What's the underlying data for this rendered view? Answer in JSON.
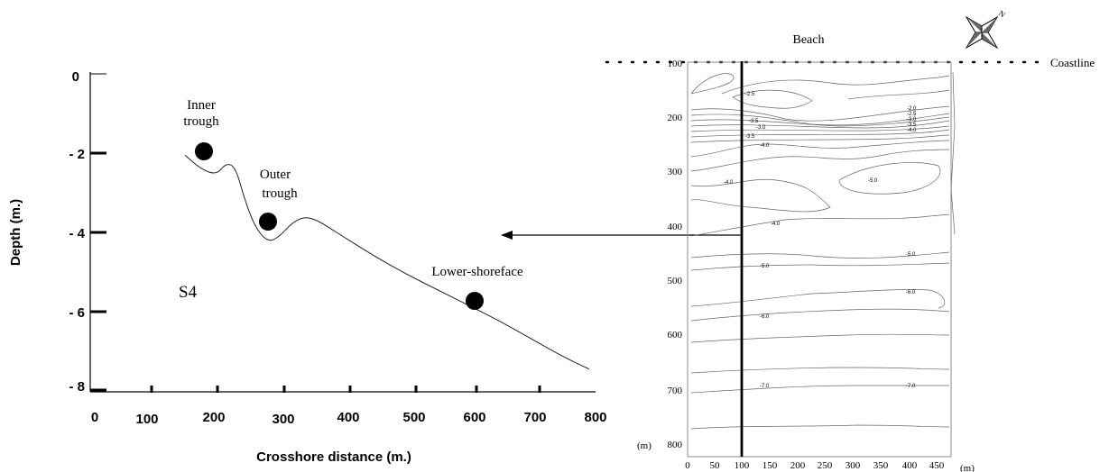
{
  "profile": {
    "y_axis_title": "Depth (m.)",
    "x_axis_title": "Crosshore distance (m.)",
    "y_ticks": [
      "0",
      "- 2",
      "- 4",
      "- 6",
      "- 8"
    ],
    "x_ticks": [
      "0",
      "100",
      "200",
      "300",
      "400",
      "500",
      "600",
      "700",
      "800"
    ],
    "station_label": "S4",
    "samples": [
      {
        "label_lines": [
          "Inner",
          "trough"
        ],
        "distance_m": 180,
        "depth_m": -2.0
      },
      {
        "label_lines": [
          "Outer",
          "trough"
        ],
        "distance_m": 270,
        "depth_m": -3.75
      },
      {
        "label_lines": [
          "Lower-shoreface"
        ],
        "distance_m": 600,
        "depth_m": -5.75
      }
    ]
  },
  "map": {
    "beach_label": "Beach",
    "coastline_label": "Coastline",
    "north_label": "N",
    "y_ticks": [
      "100",
      "200",
      "300",
      "400",
      "500",
      "600",
      "700",
      "800"
    ],
    "y_unit": "(m)",
    "x_ticks": [
      "0",
      "50",
      "100",
      "150",
      "200",
      "250",
      "300",
      "350",
      "400",
      "450"
    ],
    "x_unit": "(m)",
    "contour_labels": [
      "-2.5",
      "-2.0",
      "-2.5",
      "-3.0",
      "-3.5",
      "-4.0",
      "-3.5",
      "-3.0",
      "-3.5",
      "-4.0",
      "-4.0",
      "-5.0",
      "-4.0",
      "-5.0",
      "-5.0",
      "-6.0",
      "-6.0",
      "-7.0",
      "-7.0"
    ]
  },
  "chart_data": {
    "type": "line",
    "x": [
      150,
      175,
      200,
      215,
      230,
      245,
      262,
      282,
      300,
      320,
      340,
      360,
      380,
      400,
      450,
      500,
      550,
      600,
      650,
      700,
      750,
      790
    ],
    "y": [
      -2.05,
      -2.4,
      -2.55,
      -2.25,
      -2.35,
      -3.2,
      -3.9,
      -4.25,
      -4.1,
      -3.75,
      -3.6,
      -3.7,
      -3.9,
      -4.1,
      -4.6,
      -5.05,
      -5.45,
      -5.85,
      -6.25,
      -6.7,
      -7.15,
      -7.45
    ],
    "xlabel": "Crosshore distance (m.)",
    "ylabel": "Depth (m.)",
    "xlim": [
      0,
      800
    ],
    "ylim": [
      -8,
      0
    ],
    "grid": false
  }
}
